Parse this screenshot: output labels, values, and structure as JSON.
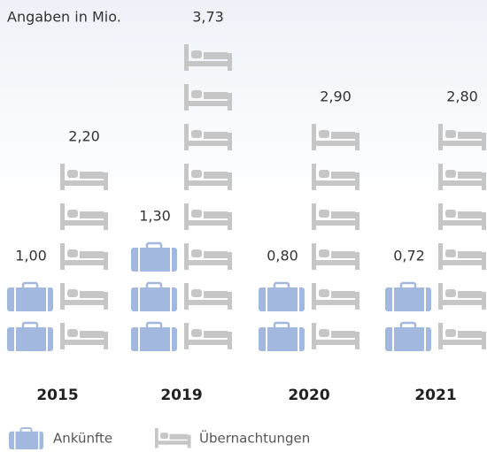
{
  "chart_data": {
    "type": "pictogram",
    "subtitle": "Angaben in Mio.",
    "categories": [
      "2015",
      "2019",
      "2020",
      "2021"
    ],
    "series": [
      {
        "name": "Ankünfte",
        "color": "#a3b8df",
        "values": [
          1.0,
          1.3,
          0.8,
          0.72
        ],
        "value_labels": [
          "1,00",
          "1,30",
          "0,80",
          "0,72"
        ]
      },
      {
        "name": "Übernachtungen",
        "color": "#c6c6c6",
        "values": [
          2.2,
          3.73,
          2.9,
          2.8
        ],
        "value_labels": [
          "2,20",
          "3,73",
          "2,90",
          "2,80"
        ]
      }
    ],
    "legend": "bottom-left"
  }
}
